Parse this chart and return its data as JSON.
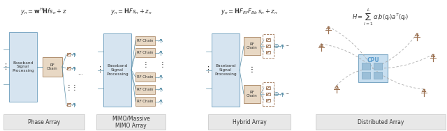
{
  "bg_color": "#ffffff",
  "box_fill_blue": "#d6e4f0",
  "box_fill_tan_light": "#e8d8c4",
  "box_stroke_blue": "#7ba7c4",
  "box_stroke_tan": "#b09070",
  "text_color": "#333333",
  "line_color": "#5a8fa8",
  "dashed_color": "#aaaaaa",
  "antenna_color": "#9b7050",
  "label_bg": "#e8e8e8",
  "label_stroke": "#cccccc",
  "panel_labels": [
    "Phase Array",
    "MIMO/Massive\nMIMO Array",
    "Hybrid Array",
    "Distributed Array"
  ],
  "eq1": "$y_n=\\mathbf{w}^H\\mathbf{H}fs_n+z$",
  "eq2": "$y_n=\\mathbf{H}Fs_n+z_n$",
  "eq3": "$y_n=\\mathbf{H}F_{RF}F_{Bb}\\,s_n+z_n$",
  "eq4": "$H=\\sum_{l=1}^{L}\\,\\alpha_l b(q_l)a^T(q_l)$",
  "cpu_color": "#5599cc",
  "cpu_fill": "#c8dff0"
}
